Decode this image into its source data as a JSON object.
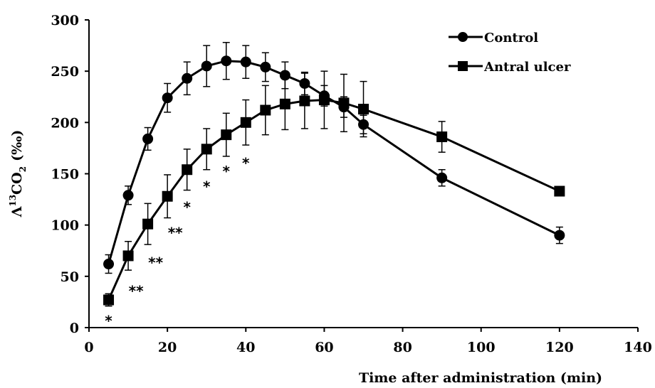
{
  "chart_data": {
    "type": "line",
    "title": "",
    "xlabel": "Time after administration (min)",
    "ylabel": "Λ13CO2 (‰)",
    "ylabel_parts": {
      "lead": "Λ",
      "sup": "13",
      "mid": "CO",
      "sub": "2",
      "unit": "(‰)"
    },
    "xlim": [
      0,
      140
    ],
    "ylim": [
      0,
      300
    ],
    "xticks": [
      0,
      20,
      40,
      60,
      80,
      100,
      120,
      140
    ],
    "yticks": [
      0,
      50,
      100,
      150,
      200,
      250,
      300
    ],
    "grid": false,
    "legend_position": "top-right",
    "series": [
      {
        "name": "Control",
        "marker": "circle",
        "x": [
          5,
          10,
          15,
          20,
          25,
          30,
          35,
          40,
          45,
          50,
          55,
          60,
          65,
          70,
          90,
          120
        ],
        "y": [
          62,
          129,
          184,
          224,
          243,
          255,
          260,
          259,
          254,
          246,
          238,
          226,
          215,
          198,
          146,
          90
        ],
        "err": [
          9,
          9,
          11,
          14,
          16,
          20,
          18,
          16,
          14,
          13,
          11,
          10,
          10,
          9,
          8,
          8
        ]
      },
      {
        "name": "Antral ulcer",
        "marker": "square",
        "x": [
          5,
          10,
          15,
          20,
          25,
          30,
          35,
          40,
          45,
          50,
          55,
          60,
          65,
          70,
          90,
          120
        ],
        "y": [
          27,
          70,
          101,
          128,
          154,
          174,
          188,
          200,
          212,
          218,
          221,
          222,
          219,
          213,
          186,
          133
        ],
        "err": [
          6,
          14,
          20,
          21,
          20,
          20,
          21,
          22,
          24,
          25,
          27,
          28,
          28,
          27,
          15,
          4
        ]
      }
    ],
    "annotations": [
      {
        "text": "*",
        "x": 5,
        "y": 10
      },
      {
        "text": "**",
        "x": 12,
        "y": 39
      },
      {
        "text": "**",
        "x": 17,
        "y": 67
      },
      {
        "text": "**",
        "x": 22,
        "y": 96
      },
      {
        "text": "*",
        "x": 25,
        "y": 121
      },
      {
        "text": "*",
        "x": 30,
        "y": 141
      },
      {
        "text": "*",
        "x": 35,
        "y": 156
      },
      {
        "text": "*",
        "x": 40,
        "y": 164
      }
    ]
  }
}
